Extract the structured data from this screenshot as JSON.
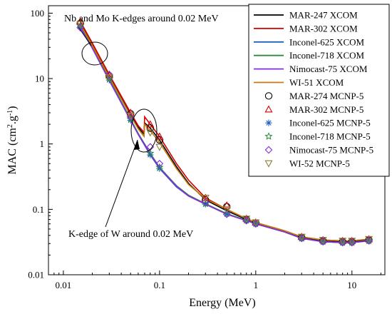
{
  "chart_data": {
    "type": "line",
    "xlabel": "Energy (MeV)",
    "ylabel_main": "MAC (cm",
    "ylabel_sup1": "2",
    "ylabel_mid": ".g",
    "ylabel_sup2": "-1",
    "ylabel_end": ")",
    "x_scale": "log",
    "y_scale": "log",
    "xlim": [
      0.007,
      22
    ],
    "ylim": [
      0.01,
      130
    ],
    "x_ticks": [
      {
        "value": 0.01,
        "label": "0.01"
      },
      {
        "value": 0.1,
        "label": "0.1"
      },
      {
        "value": 1,
        "label": "1"
      },
      {
        "value": 10,
        "label": "10"
      }
    ],
    "y_ticks": [
      {
        "value": 0.01,
        "label": "0.01"
      },
      {
        "value": 0.1,
        "label": "0.1"
      },
      {
        "value": 1,
        "label": "1"
      },
      {
        "value": 10,
        "label": "10"
      },
      {
        "value": 100,
        "label": "100"
      }
    ],
    "grid": false,
    "legend_position": "top-right",
    "annotations": [
      {
        "text": "Nb and Mo K-edges around 0.02 MeV"
      },
      {
        "text": "K-edge of W around 0.02 MeV"
      }
    ],
    "lines": [
      {
        "name": "MAR-247 XCOM",
        "color": "#000000",
        "x": [
          0.015,
          0.02,
          0.03,
          0.05,
          0.06,
          0.069,
          0.07,
          0.08,
          0.1,
          0.15,
          0.2,
          0.3,
          0.5,
          0.8,
          1,
          2,
          3,
          5,
          8,
          10,
          15
        ],
        "y": [
          70,
          33,
          11,
          2.9,
          1.8,
          1.4,
          2.1,
          1.75,
          1.15,
          0.45,
          0.25,
          0.14,
          0.095,
          0.07,
          0.062,
          0.046,
          0.037,
          0.033,
          0.032,
          0.032,
          0.034
        ]
      },
      {
        "name": "MAR-302 XCOM",
        "color": "#d40000",
        "x": [
          0.015,
          0.02,
          0.03,
          0.05,
          0.06,
          0.069,
          0.07,
          0.08,
          0.1,
          0.15,
          0.2,
          0.3,
          0.5,
          0.8,
          1,
          2,
          3,
          5,
          8,
          10,
          15
        ],
        "y": [
          75,
          35,
          11.5,
          3.0,
          1.9,
          1.5,
          2.6,
          2.0,
          1.3,
          0.5,
          0.28,
          0.15,
          0.1,
          0.072,
          0.063,
          0.047,
          0.038,
          0.034,
          0.033,
          0.033,
          0.035
        ]
      },
      {
        "name": "Inconel-625 XCOM",
        "color": "#1f5fbf",
        "x": [
          0.015,
          0.02,
          0.03,
          0.05,
          0.06,
          0.08,
          0.1,
          0.15,
          0.2,
          0.3,
          0.5,
          0.8,
          1,
          2,
          3,
          5,
          8,
          10,
          15
        ],
        "y": [
          62,
          30,
          9.5,
          2.3,
          1.4,
          0.68,
          0.42,
          0.22,
          0.16,
          0.12,
          0.085,
          0.068,
          0.06,
          0.045,
          0.036,
          0.032,
          0.031,
          0.031,
          0.033
        ]
      },
      {
        "name": "Inconel-718 XCOM",
        "color": "#2e8b3c",
        "x": [
          0.015,
          0.02,
          0.03,
          0.05,
          0.06,
          0.08,
          0.1,
          0.15,
          0.2,
          0.3,
          0.5,
          0.8,
          1,
          2,
          3,
          5,
          8,
          10,
          15
        ],
        "y": [
          64,
          31,
          9.8,
          2.4,
          1.45,
          0.72,
          0.44,
          0.23,
          0.165,
          0.122,
          0.086,
          0.068,
          0.06,
          0.045,
          0.036,
          0.032,
          0.031,
          0.031,
          0.033
        ]
      },
      {
        "name": "Nimocast-75 XCOM",
        "color": "#8a2be2",
        "x": [
          0.015,
          0.02,
          0.03,
          0.05,
          0.06,
          0.08,
          0.1,
          0.15,
          0.2,
          0.3,
          0.5,
          0.8,
          1,
          2,
          3,
          5,
          8,
          10,
          15
        ],
        "y": [
          60,
          29,
          9.3,
          2.3,
          1.4,
          0.7,
          0.43,
          0.225,
          0.16,
          0.12,
          0.084,
          0.067,
          0.06,
          0.045,
          0.036,
          0.032,
          0.031,
          0.031,
          0.033
        ]
      },
      {
        "name": "WI-51 XCOM",
        "color": "#c27c0e",
        "x": [
          0.015,
          0.02,
          0.03,
          0.05,
          0.06,
          0.069,
          0.07,
          0.08,
          0.1,
          0.15,
          0.2,
          0.3,
          0.5,
          0.8,
          1,
          2,
          3,
          5,
          8,
          10,
          15
        ],
        "y": [
          68,
          32,
          10.5,
          2.7,
          1.7,
          1.3,
          2.0,
          1.6,
          1.05,
          0.42,
          0.24,
          0.145,
          0.1,
          0.072,
          0.063,
          0.047,
          0.038,
          0.034,
          0.033,
          0.033,
          0.035
        ]
      }
    ],
    "markers": [
      {
        "name": "MAR-274 MCNP-5",
        "symbol": "circle",
        "color": "#000000",
        "x": [
          0.015,
          0.03,
          0.05,
          0.08,
          0.1,
          0.3,
          0.5,
          0.8,
          1,
          3,
          5,
          8,
          10,
          15
        ],
        "y": [
          70,
          11,
          2.9,
          1.75,
          1.15,
          0.14,
          0.11,
          0.07,
          0.062,
          0.037,
          0.033,
          0.032,
          0.032,
          0.034
        ]
      },
      {
        "name": "MAR-302 MCNP-5",
        "symbol": "triangle-up",
        "color": "#d40000",
        "x": [
          0.015,
          0.03,
          0.05,
          0.08,
          0.1,
          0.3,
          0.5,
          0.8,
          1,
          3,
          5,
          8,
          10,
          15
        ],
        "y": [
          75,
          11.5,
          3.0,
          2.0,
          1.3,
          0.15,
          0.115,
          0.072,
          0.063,
          0.038,
          0.034,
          0.033,
          0.033,
          0.035
        ]
      },
      {
        "name": "Inconel-625 MCNP-5",
        "symbol": "asterisk",
        "color": "#1f5fbf",
        "x": [
          0.015,
          0.03,
          0.05,
          0.08,
          0.1,
          0.3,
          0.5,
          0.8,
          1,
          3,
          5,
          8,
          10,
          15
        ],
        "y": [
          62,
          9.5,
          2.3,
          0.68,
          0.42,
          0.12,
          0.085,
          0.068,
          0.06,
          0.036,
          0.032,
          0.031,
          0.031,
          0.033
        ]
      },
      {
        "name": "Inconel-718 MCNP-5",
        "symbol": "star",
        "color": "#2e8b3c",
        "x": [
          0.015,
          0.03,
          0.05,
          0.08,
          0.1,
          0.3,
          0.5,
          0.8,
          1,
          3,
          5,
          8,
          10,
          15
        ],
        "y": [
          64,
          9.8,
          2.4,
          0.72,
          0.44,
          0.122,
          0.086,
          0.068,
          0.06,
          0.036,
          0.032,
          0.031,
          0.031,
          0.033
        ]
      },
      {
        "name": "Nimocast-75 MCNP-5",
        "symbol": "diamond",
        "color": "#8a2be2",
        "x": [
          0.015,
          0.03,
          0.05,
          0.08,
          0.1,
          0.3,
          0.5,
          0.8,
          1,
          3,
          5,
          8,
          10,
          15
        ],
        "y": [
          60,
          11.5,
          2.6,
          0.9,
          0.5,
          0.13,
          0.084,
          0.067,
          0.06,
          0.036,
          0.032,
          0.031,
          0.031,
          0.033
        ]
      },
      {
        "name": "WI-52 MCNP-5",
        "symbol": "triangle-down",
        "color": "#8b7d3a",
        "x": [
          0.015,
          0.03,
          0.05,
          0.08,
          0.1,
          0.3,
          0.5,
          0.8,
          1,
          3,
          5,
          8,
          10,
          15
        ],
        "y": [
          68,
          10.5,
          2.7,
          1.5,
          0.9,
          0.15,
          0.1,
          0.072,
          0.063,
          0.038,
          0.034,
          0.033,
          0.033,
          0.035
        ]
      }
    ]
  }
}
